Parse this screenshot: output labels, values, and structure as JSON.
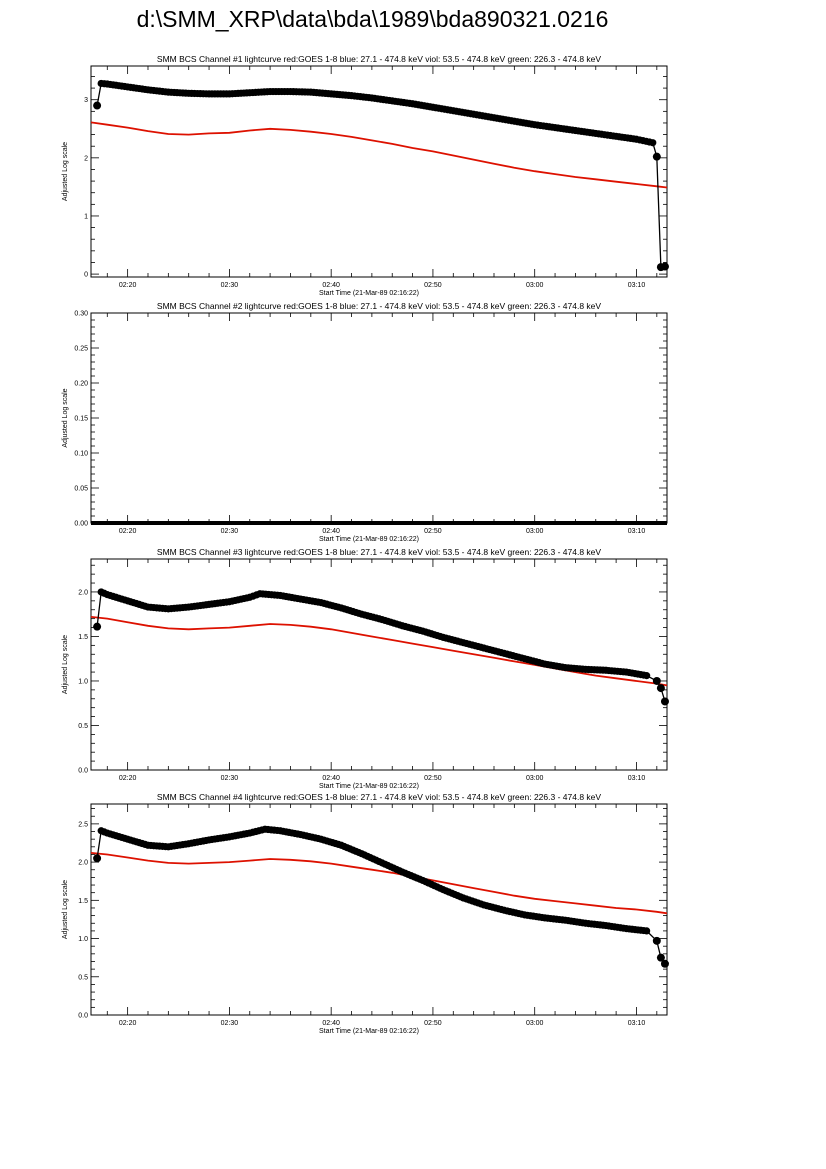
{
  "page": {
    "title": "d:\\SMM_XRP\\data\\bda\\1989\\bda890321.0216"
  },
  "colors": {
    "goes": "#dd1100",
    "bcs": "#000000",
    "axis": "#000000"
  },
  "chart_data": [
    {
      "type": "line",
      "title": "SMM BCS Channel #1 lightcurve  red:GOES 1-8  blue: 27.1 - 474.8 keV  viol: 53.5 - 474.8 keV  green: 226.3 - 474.8 keV",
      "xlabel": "Start Time (21-Mar-89 02:16:22)",
      "ylabel": "Adjusted Log scale",
      "xlim": [
        16.4,
        73.0
      ],
      "ylim": [
        -0.05,
        3.58
      ],
      "xticks": [
        "02:20",
        "02:30",
        "02:40",
        "02:50",
        "03:00",
        "03:10"
      ],
      "xtick_values": [
        20,
        30,
        40,
        50,
        60,
        70
      ],
      "yticks": [
        "0",
        "1",
        "2",
        "3"
      ],
      "ytick_values": [
        0,
        1,
        2,
        3
      ],
      "grid": false,
      "series": [
        {
          "color": "#000000",
          "markers": true,
          "x": [
            17.0,
            17.4,
            18,
            20,
            22,
            24,
            26,
            28,
            30,
            32,
            34,
            36,
            38,
            40,
            42,
            44,
            46,
            48,
            50,
            52,
            54,
            56,
            58,
            60,
            62,
            64,
            66,
            68,
            70,
            71.6,
            72.0,
            72.4,
            72.8
          ],
          "y": [
            2.9,
            3.28,
            3.27,
            3.22,
            3.17,
            3.13,
            3.11,
            3.1,
            3.1,
            3.12,
            3.14,
            3.14,
            3.13,
            3.1,
            3.07,
            3.03,
            2.98,
            2.93,
            2.87,
            2.81,
            2.75,
            2.69,
            2.63,
            2.57,
            2.52,
            2.47,
            2.42,
            2.37,
            2.32,
            2.26,
            2.02,
            0.12,
            0.13
          ]
        },
        {
          "color": "#dd1100",
          "markers": false,
          "x": [
            16.4,
            18,
            20,
            22,
            24,
            26,
            28,
            30,
            32,
            34,
            36,
            38,
            40,
            42,
            44,
            46,
            48,
            50,
            52,
            54,
            56,
            58,
            60,
            62,
            64,
            66,
            68,
            70,
            72,
            73
          ],
          "y": [
            2.61,
            2.57,
            2.52,
            2.46,
            2.41,
            2.4,
            2.42,
            2.43,
            2.47,
            2.5,
            2.48,
            2.45,
            2.41,
            2.36,
            2.3,
            2.24,
            2.17,
            2.11,
            2.04,
            1.97,
            1.9,
            1.83,
            1.77,
            1.72,
            1.67,
            1.63,
            1.59,
            1.55,
            1.51,
            1.49
          ]
        }
      ]
    },
    {
      "type": "line",
      "title": "SMM BCS Channel #2 lightcurve  red:GOES 1-8  blue: 27.1 - 474.8 keV  viol: 53.5 - 474.8 keV  green: 226.3 - 474.8 keV",
      "xlabel": "Start Time (21-Mar-89 02:16:22)",
      "ylabel": "Adjusted Log scale",
      "xlim": [
        16.4,
        73.0
      ],
      "ylim": [
        0,
        0.3
      ],
      "xticks": [
        "02:20",
        "02:30",
        "02:40",
        "02:50",
        "03:00",
        "03:10"
      ],
      "xtick_values": [
        20,
        30,
        40,
        50,
        60,
        70
      ],
      "yticks": [
        "0.00",
        "0.05",
        "0.10",
        "0.15",
        "0.20",
        "0.25",
        "0.30"
      ],
      "ytick_values": [
        0,
        0.05,
        0.1,
        0.15,
        0.2,
        0.25,
        0.3
      ],
      "grid": false,
      "series": [
        {
          "color": "#000000",
          "markers": false,
          "thick": true,
          "x": [
            16.4,
            73.0
          ],
          "y": [
            0,
            0
          ]
        }
      ]
    },
    {
      "type": "line",
      "title": "SMM BCS Channel #3 lightcurve  red:GOES 1-8  blue: 27.1 - 474.8 keV  viol: 53.5 - 474.8 keV  green: 226.3 - 474.8 keV",
      "xlabel": "Start Time (21-Mar-89 02:16:22)",
      "ylabel": "Adjusted Log scale",
      "xlim": [
        16.4,
        73.0
      ],
      "ylim": [
        0,
        2.37
      ],
      "xticks": [
        "02:20",
        "02:30",
        "02:40",
        "02:50",
        "03:00",
        "03:10"
      ],
      "xtick_values": [
        20,
        30,
        40,
        50,
        60,
        70
      ],
      "yticks": [
        "0.0",
        "0.5",
        "1.0",
        "1.5",
        "2.0"
      ],
      "ytick_values": [
        0,
        0.5,
        1.0,
        1.5,
        2.0
      ],
      "grid": false,
      "series": [
        {
          "color": "#000000",
          "markers": true,
          "x": [
            17.0,
            17.4,
            18,
            20,
            22,
            24,
            26,
            28,
            30,
            32,
            33,
            35,
            37,
            39,
            41,
            43,
            45,
            47,
            49,
            51,
            53,
            55,
            57,
            59,
            61,
            63,
            65,
            67,
            69,
            71,
            72.0,
            72.4,
            72.8
          ],
          "y": [
            1.61,
            2.0,
            1.97,
            1.9,
            1.83,
            1.81,
            1.83,
            1.86,
            1.89,
            1.94,
            1.98,
            1.96,
            1.92,
            1.88,
            1.82,
            1.75,
            1.69,
            1.62,
            1.56,
            1.49,
            1.43,
            1.37,
            1.31,
            1.25,
            1.19,
            1.15,
            1.13,
            1.12,
            1.1,
            1.06,
            1.0,
            0.92,
            0.77
          ]
        },
        {
          "color": "#dd1100",
          "markers": false,
          "x": [
            16.4,
            18,
            20,
            22,
            24,
            26,
            28,
            30,
            32,
            34,
            36,
            38,
            40,
            42,
            44,
            46,
            48,
            50,
            52,
            54,
            56,
            58,
            60,
            62,
            64,
            66,
            68,
            70,
            72,
            73
          ],
          "y": [
            1.72,
            1.7,
            1.66,
            1.62,
            1.59,
            1.58,
            1.59,
            1.6,
            1.62,
            1.64,
            1.63,
            1.61,
            1.58,
            1.54,
            1.5,
            1.46,
            1.42,
            1.38,
            1.34,
            1.3,
            1.26,
            1.22,
            1.18,
            1.14,
            1.1,
            1.06,
            1.03,
            1.0,
            0.97,
            0.95
          ]
        }
      ]
    },
    {
      "type": "line",
      "title": "SMM BCS Channel #4 lightcurve  red:GOES 1-8  blue: 27.1 - 474.8 keV  viol: 53.5 - 474.8 keV  green: 226.3 - 474.8 keV",
      "xlabel": "Start Time (21-Mar-89 02:16:22)",
      "ylabel": "Adjusted Log scale",
      "xlim": [
        16.4,
        73.0
      ],
      "ylim": [
        0,
        2.76
      ],
      "xticks": [
        "02:20",
        "02:30",
        "02:40",
        "02:50",
        "03:00",
        "03:10"
      ],
      "xtick_values": [
        20,
        30,
        40,
        50,
        60,
        70
      ],
      "yticks": [
        "0.0",
        "0.5",
        "1.0",
        "1.5",
        "2.0",
        "2.5"
      ],
      "ytick_values": [
        0,
        0.5,
        1.0,
        1.5,
        2.0,
        2.5
      ],
      "grid": false,
      "series": [
        {
          "color": "#000000",
          "markers": true,
          "x": [
            17.0,
            17.4,
            18,
            20,
            22,
            24,
            26,
            28,
            30,
            32,
            33.5,
            35,
            37,
            39,
            41,
            43,
            45,
            47,
            49,
            51,
            53,
            55,
            57,
            59,
            61,
            63,
            65,
            67,
            69,
            71,
            72.0,
            72.4,
            72.8
          ],
          "y": [
            2.05,
            2.41,
            2.38,
            2.3,
            2.22,
            2.2,
            2.24,
            2.29,
            2.33,
            2.38,
            2.43,
            2.41,
            2.36,
            2.3,
            2.22,
            2.11,
            1.99,
            1.87,
            1.76,
            1.64,
            1.53,
            1.44,
            1.37,
            1.31,
            1.27,
            1.24,
            1.2,
            1.17,
            1.13,
            1.1,
            0.97,
            0.75,
            0.67
          ]
        },
        {
          "color": "#dd1100",
          "markers": false,
          "x": [
            16.4,
            18,
            20,
            22,
            24,
            26,
            28,
            30,
            32,
            34,
            36,
            38,
            40,
            42,
            44,
            46,
            48,
            50,
            52,
            54,
            56,
            58,
            60,
            62,
            64,
            66,
            68,
            70,
            72,
            73
          ],
          "y": [
            2.12,
            2.1,
            2.06,
            2.02,
            1.99,
            1.98,
            1.99,
            2.0,
            2.02,
            2.04,
            2.03,
            2.01,
            1.98,
            1.94,
            1.9,
            1.86,
            1.81,
            1.76,
            1.71,
            1.66,
            1.61,
            1.56,
            1.52,
            1.49,
            1.46,
            1.43,
            1.4,
            1.38,
            1.35,
            1.33
          ]
        }
      ]
    }
  ]
}
